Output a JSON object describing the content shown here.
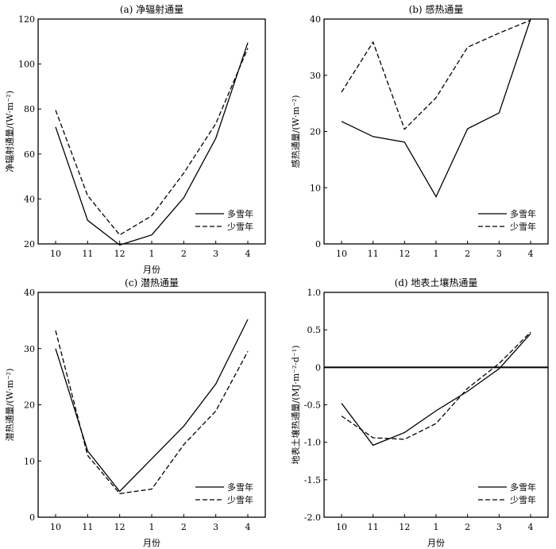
{
  "chart_data": [
    {
      "type": "line",
      "title": "(a) 净辐射通量",
      "xlabel": "月份",
      "ylabel": "净辐射通量/(W·m⁻²)",
      "categories": [
        "10",
        "11",
        "12",
        "1",
        "2",
        "3",
        "4"
      ],
      "ylim": [
        20,
        120
      ],
      "yticks": [
        20,
        40,
        60,
        80,
        100,
        120
      ],
      "ytick_labels": [
        "20",
        "40",
        "60",
        "80",
        "100",
        "120"
      ],
      "legend_position": "bottom-right",
      "series": [
        {
          "name": "多雪年",
          "style": "solid",
          "values": [
            72,
            30.5,
            19.5,
            24,
            40.5,
            67,
            109.5
          ]
        },
        {
          "name": "少雪年",
          "style": "dashed",
          "values": [
            79.5,
            41.5,
            24,
            32.5,
            51.5,
            73.5,
            107
          ]
        }
      ]
    },
    {
      "type": "line",
      "title": "(b) 感热通量",
      "xlabel": "",
      "ylabel": "感热通量/(W·m⁻²)",
      "categories": [
        "10",
        "11",
        "12",
        "1",
        "2",
        "3",
        "4"
      ],
      "ylim": [
        0,
        40
      ],
      "yticks": [
        0,
        10,
        20,
        30,
        40
      ],
      "ytick_labels": [
        "0",
        "10",
        "20",
        "30",
        "40"
      ],
      "legend_position": "bottom-right",
      "series": [
        {
          "name": "多雪年",
          "style": "solid",
          "values": [
            21.8,
            19.1,
            18.1,
            8.4,
            20.5,
            23.3,
            40
          ]
        },
        {
          "name": "少雪年",
          "style": "dashed",
          "values": [
            27,
            35.9,
            20.4,
            26,
            35,
            37.5,
            39.8
          ]
        }
      ]
    },
    {
      "type": "line",
      "title": "(c) 潜热通量",
      "xlabel": "月份",
      "ylabel": "潜热通量/(W·m⁻²)",
      "categories": [
        "10",
        "11",
        "12",
        "1",
        "2",
        "3",
        "4"
      ],
      "ylim": [
        0,
        40
      ],
      "yticks": [
        0,
        10,
        20,
        30,
        40
      ],
      "ytick_labels": [
        "0",
        "10",
        "20",
        "30",
        "40"
      ],
      "legend_position": "bottom-right",
      "series": [
        {
          "name": "多雪年",
          "style": "solid",
          "values": [
            30,
            11.8,
            4.6,
            10.4,
            16.2,
            23.7,
            35.2
          ]
        },
        {
          "name": "少雪年",
          "style": "dashed",
          "values": [
            33.2,
            11,
            4.2,
            5,
            12.9,
            18.9,
            29.5
          ]
        }
      ]
    },
    {
      "type": "line",
      "title": "(d) 地表土壤热通量",
      "xlabel": "月份",
      "ylabel": "地表土壤热通量/(MJ·m⁻²·d⁻¹)",
      "categories": [
        "10",
        "11",
        "12",
        "1",
        "2",
        "3",
        "4"
      ],
      "ylim": [
        -2.0,
        1.0
      ],
      "yticks": [
        -2.0,
        -1.5,
        -1.0,
        -0.5,
        0,
        0.5,
        1.0
      ],
      "ytick_labels": [
        "-2.0",
        "-1.5",
        "-1.0",
        "-0.5",
        "0",
        "0.5",
        "1.0"
      ],
      "zero_line": true,
      "legend_position": "bottom-right",
      "series": [
        {
          "name": "多雪年",
          "style": "solid",
          "values": [
            -0.48,
            -1.04,
            -0.87,
            -0.58,
            -0.32,
            -0.02,
            0.45
          ]
        },
        {
          "name": "少雪年",
          "style": "dashed",
          "values": [
            -0.65,
            -0.94,
            -0.96,
            -0.75,
            -0.28,
            0.05,
            0.47
          ]
        }
      ]
    }
  ]
}
